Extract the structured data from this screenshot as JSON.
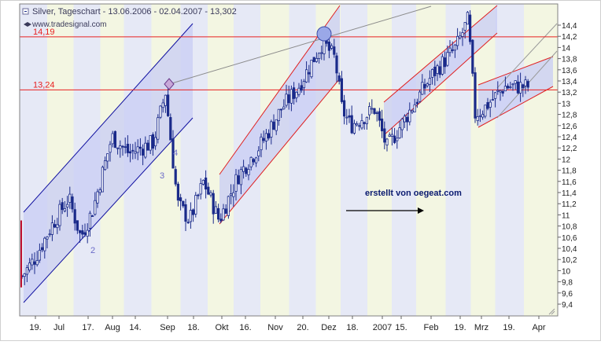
{
  "header": {
    "title": "Silver, Tageschart - 13.06.2006 - 02.04.2007 - 13,302",
    "source": "www.tradesignal.com"
  },
  "chart_data": {
    "type": "candlestick",
    "ylim": [
      9.3,
      14.65
    ],
    "y_ticks": [
      "9,4",
      "9,6",
      "9,8",
      "10",
      "10,2",
      "10,4",
      "10,6",
      "10,8",
      "11",
      "11,2",
      "11,4",
      "11,6",
      "11,8",
      "12",
      "12,2",
      "12,4",
      "12,6",
      "12,8",
      "13",
      "13,2",
      "13,4",
      "13,6",
      "13,8",
      "14",
      "14,2",
      "14,4"
    ],
    "x_ticks": [
      "19.",
      "Jul",
      "17.",
      "Aug",
      "14.",
      "Sep",
      "18.",
      "Okt",
      "16.",
      "Nov",
      "20.",
      "Dez",
      "18.",
      "2007",
      "15.",
      "Feb",
      "19.",
      "Mrz",
      "19.",
      "Apr"
    ],
    "h_lines": [
      {
        "label": "14,19",
        "value": 14.19,
        "color": "#e82020"
      },
      {
        "label": "13,24",
        "value": 13.24,
        "color": "#e82020"
      }
    ],
    "wave_labels": [
      "2",
      "3",
      "4"
    ],
    "annotation_text": "erstellt von oegeat.com",
    "colors": {
      "candle": "#1a2a8a",
      "channel_blue": "#1010a0",
      "channel_red": "#e02020",
      "channel_fill": "#c8ccf4",
      "band_a": "#e6e9f6",
      "band_b": "#f3f6e2"
    },
    "price_path": [
      {
        "date": "13.06.2006",
        "close": 9.9
      },
      {
        "date": "20.06.2006",
        "close": 10.2
      },
      {
        "date": "30.06.2006",
        "close": 10.8
      },
      {
        "date": "10.07.2006",
        "close": 11.3
      },
      {
        "date": "17.07.2006",
        "close": 10.6
      },
      {
        "date": "24.07.2006",
        "close": 11.1
      },
      {
        "date": "04.08.2006",
        "close": 12.4
      },
      {
        "date": "14.08.2006",
        "close": 12.1
      },
      {
        "date": "28.08.2006",
        "close": 12.3
      },
      {
        "date": "04.09.2006",
        "close": 13.2
      },
      {
        "date": "11.09.2006",
        "close": 11.2
      },
      {
        "date": "18.09.2006",
        "close": 10.9
      },
      {
        "date": "26.09.2006",
        "close": 11.6
      },
      {
        "date": "05.10.2006",
        "close": 10.9
      },
      {
        "date": "16.10.2006",
        "close": 11.7
      },
      {
        "date": "30.10.2006",
        "close": 12.3
      },
      {
        "date": "10.11.2006",
        "close": 12.9
      },
      {
        "date": "20.11.2006",
        "close": 13.3
      },
      {
        "date": "04.12.2006",
        "close": 14.1
      },
      {
        "date": "11.12.2006",
        "close": 13.8
      },
      {
        "date": "15.12.2006",
        "close": 12.9
      },
      {
        "date": "20.12.2006",
        "close": 12.6
      },
      {
        "date": "03.01.2007",
        "close": 12.9
      },
      {
        "date": "10.01.2007",
        "close": 12.2
      },
      {
        "date": "22.01.2007",
        "close": 12.8
      },
      {
        "date": "05.02.2007",
        "close": 13.5
      },
      {
        "date": "19.02.2007",
        "close": 14.0
      },
      {
        "date": "26.02.2007",
        "close": 14.5
      },
      {
        "date": "02.03.2007",
        "close": 12.8
      },
      {
        "date": "07.03.2007",
        "close": 12.9
      },
      {
        "date": "19.03.2007",
        "close": 13.3
      },
      {
        "date": "02.04.2007",
        "close": 13.3
      }
    ]
  }
}
